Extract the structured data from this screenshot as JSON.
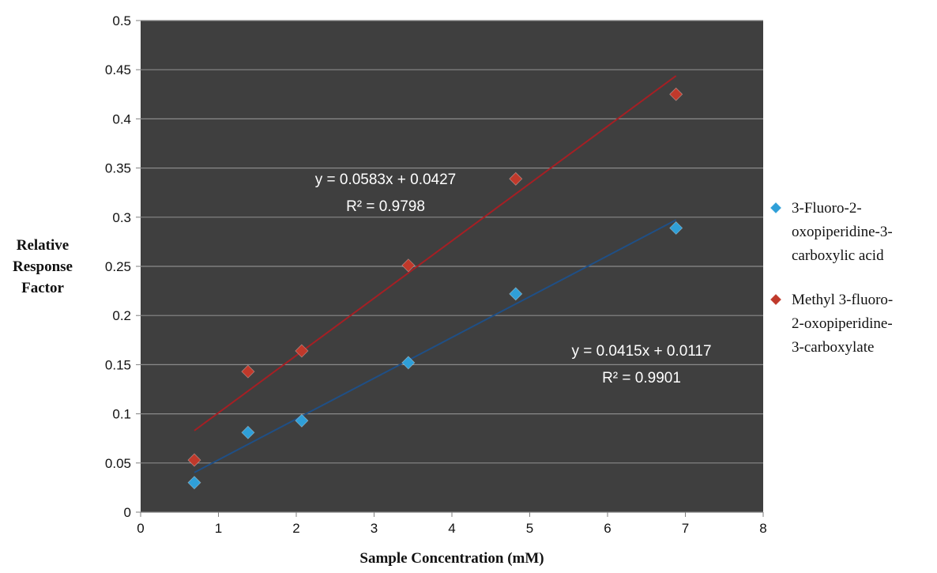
{
  "chart_data": {
    "type": "scatter",
    "xlabel": "Sample Concentration (mM)",
    "ylabel": [
      "Relative",
      "Response",
      "Factor"
    ],
    "xlim": [
      0,
      8
    ],
    "ylim": [
      0,
      0.5
    ],
    "xticks": [
      0,
      1,
      2,
      3,
      4,
      5,
      6,
      7,
      8
    ],
    "xtick_labels": [
      "0",
      "1",
      "2",
      "3",
      "4",
      "5",
      "6",
      "7",
      "8"
    ],
    "yticks": [
      0,
      0.05,
      0.1,
      0.15,
      0.2,
      0.25,
      0.3,
      0.35,
      0.4,
      0.45,
      0.5
    ],
    "ytick_labels": [
      "0",
      "0.05",
      "0.1",
      "0.15",
      "0.2",
      "0.25",
      "0.3",
      "0.35",
      "0.4",
      "0.45",
      "0.5"
    ],
    "grid": true,
    "legend_position": "right",
    "plot_background": "#3f3f3f",
    "series": [
      {
        "name_lines": [
          "3-Fluoro-2-",
          "oxopiperidine-3-",
          "carboxylic acid"
        ],
        "color": "#2f9fd8",
        "marker": "diamond",
        "x": [
          0.69,
          1.38,
          2.07,
          3.44,
          4.82,
          6.88
        ],
        "y": [
          0.03,
          0.081,
          0.093,
          0.152,
          0.222,
          0.289
        ],
        "trendline": {
          "slope": 0.0415,
          "intercept": 0.0117,
          "x_range": [
            0.69,
            6.88
          ],
          "line_color": "#1f4f86",
          "equation": "y = 0.0415x + 0.0117",
          "r2_label": "R² = 0.9901"
        }
      },
      {
        "name_lines": [
          "Methyl 3-fluoro-",
          "2-oxopiperidine-",
          "3-carboxylate"
        ],
        "color": "#c0392b",
        "marker": "diamond",
        "x": [
          0.69,
          1.38,
          2.07,
          3.44,
          4.82,
          6.88
        ],
        "y": [
          0.053,
          0.143,
          0.164,
          0.251,
          0.339,
          0.425
        ],
        "trendline": {
          "slope": 0.0583,
          "intercept": 0.0427,
          "x_range": [
            0.69,
            6.88
          ],
          "line_color": "#a51f24",
          "equation": "y = 0.0583x + 0.0427",
          "r2_label": "R² = 0.9798"
        }
      }
    ]
  }
}
